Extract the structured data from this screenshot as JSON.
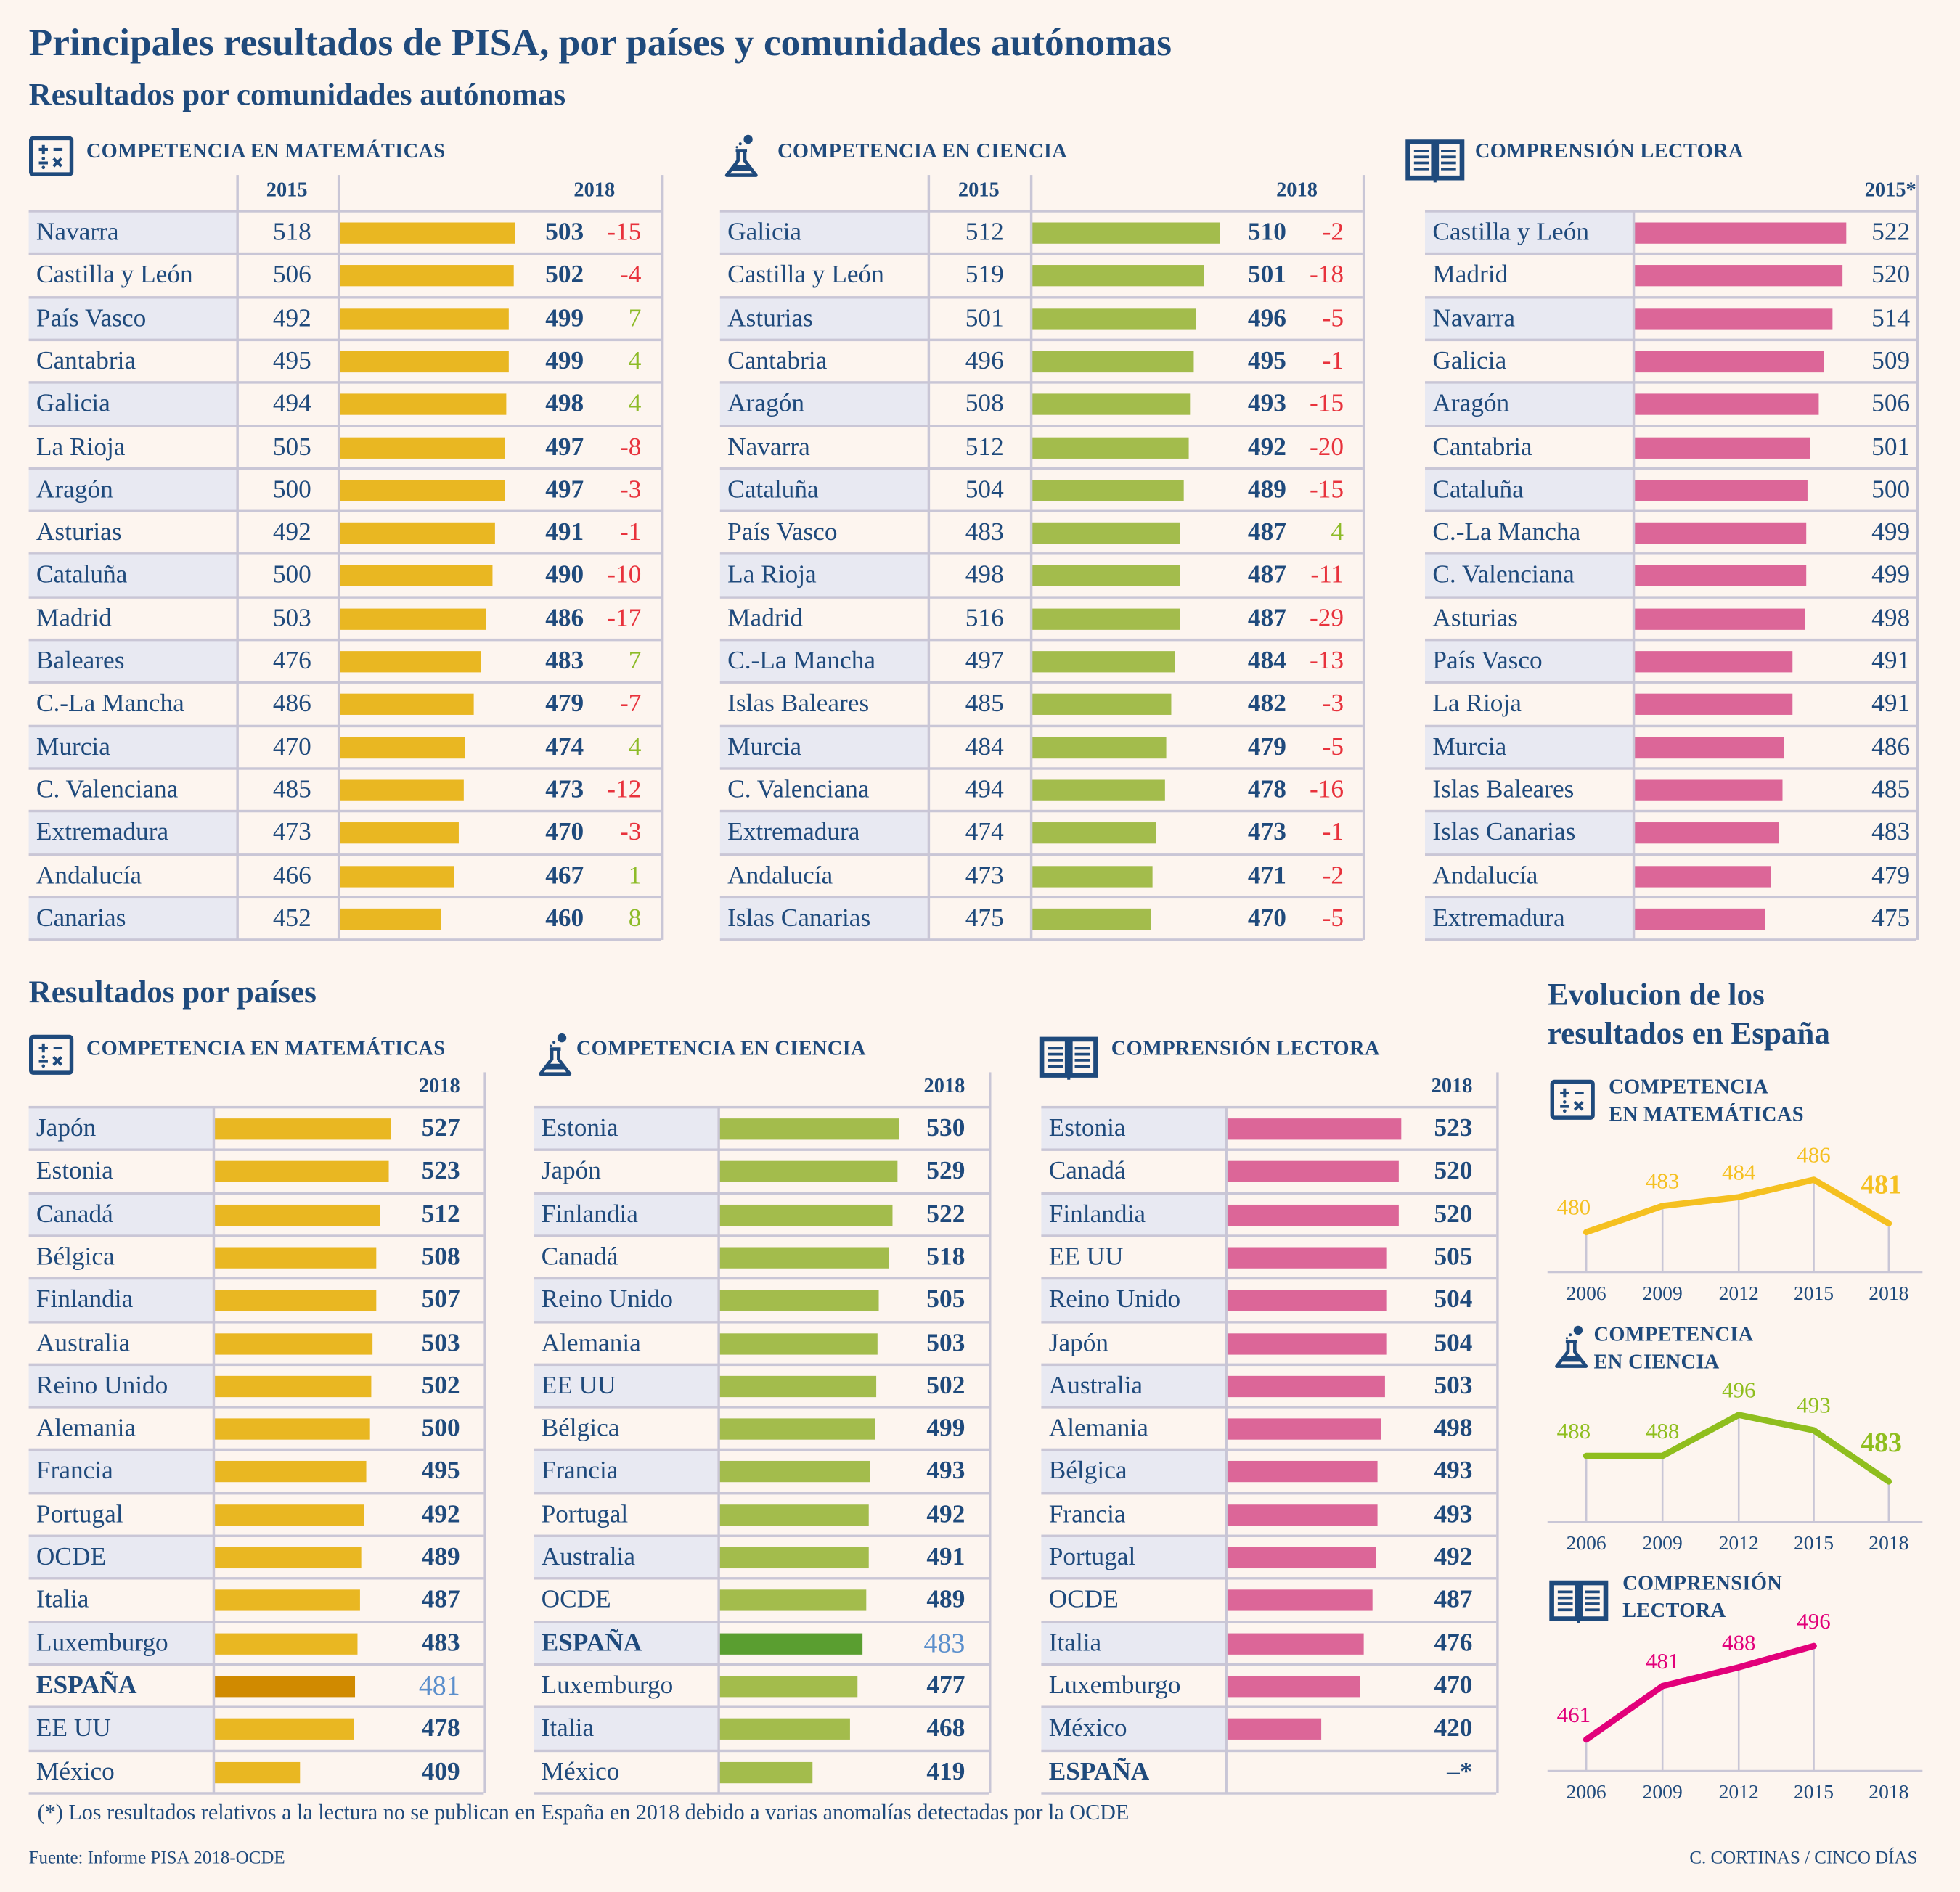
{
  "title": "Principales resultados de PISA, por países y comunidades autónomas",
  "regions_subtitle": "Resultados por comunidades autónomas",
  "countries_subtitle": "Resultados  por países",
  "colors": {
    "text": "#1f4a7c",
    "math": "#e9b722",
    "science": "#a3bc4c",
    "reading": "#dc6698",
    "math_spain": "#d08a00",
    "science_spain": "#5a9e30",
    "spain_value": "#5b8fcc",
    "negative": "#e8323c",
    "positive": "#8dbb28",
    "row_shade": "#e8e9f2",
    "background": "#fdf5ef"
  },
  "regions": {
    "math": {
      "label": "COMPETENCIA EN MATEMÁTICAS",
      "icon": "calculator-icon",
      "col_2015": "2015",
      "col_2018": "2018",
      "rows": [
        {
          "name": "Navarra",
          "v2015": 518,
          "v2018": 503,
          "delta": "-15"
        },
        {
          "name": "Castilla y León",
          "v2015": 506,
          "v2018": 502,
          "delta": "-4"
        },
        {
          "name": "País Vasco",
          "v2015": 492,
          "v2018": 499,
          "delta": "7"
        },
        {
          "name": "Cantabria",
          "v2015": 495,
          "v2018": 499,
          "delta": "4"
        },
        {
          "name": "Galicia",
          "v2015": 494,
          "v2018": 498,
          "delta": "4"
        },
        {
          "name": "La Rioja",
          "v2015": 505,
          "v2018": 497,
          "delta": "-8"
        },
        {
          "name": "Aragón",
          "v2015": 500,
          "v2018": 497,
          "delta": "-3"
        },
        {
          "name": "Asturias",
          "v2015": 492,
          "v2018": 491,
          "delta": "-1"
        },
        {
          "name": "Cataluña",
          "v2015": 500,
          "v2018": 490,
          "delta": "-10"
        },
        {
          "name": "Madrid",
          "v2015": 503,
          "v2018": 486,
          "delta": "-17"
        },
        {
          "name": "Baleares",
          "v2015": 476,
          "v2018": 483,
          "delta": "7"
        },
        {
          "name": "C.-La Mancha",
          "v2015": 486,
          "v2018": 479,
          "delta": "-7"
        },
        {
          "name": "Murcia",
          "v2015": 470,
          "v2018": 474,
          "delta": "4"
        },
        {
          "name": "C. Valenciana",
          "v2015": 485,
          "v2018": 473,
          "delta": "-12"
        },
        {
          "name": "Extremadura",
          "v2015": 473,
          "v2018": 470,
          "delta": "-3"
        },
        {
          "name": "Andalucía",
          "v2015": 466,
          "v2018": 467,
          "delta": "1"
        },
        {
          "name": "Canarias",
          "v2015": 452,
          "v2018": 460,
          "delta": "8"
        }
      ]
    },
    "science": {
      "label": "COMPETENCIA EN CIENCIA",
      "icon": "flask-icon",
      "col_2015": "2015",
      "col_2018": "2018",
      "rows": [
        {
          "name": "Galicia",
          "v2015": 512,
          "v2018": 510,
          "delta": "-2"
        },
        {
          "name": "Castilla y León",
          "v2015": 519,
          "v2018": 501,
          "delta": "-18"
        },
        {
          "name": "Asturias",
          "v2015": 501,
          "v2018": 496,
          "delta": "-5"
        },
        {
          "name": "Cantabria",
          "v2015": 496,
          "v2018": 495,
          "delta": "-1"
        },
        {
          "name": "Aragón",
          "v2015": 508,
          "v2018": 493,
          "delta": "-15"
        },
        {
          "name": "Navarra",
          "v2015": 512,
          "v2018": 492,
          "delta": "-20"
        },
        {
          "name": "Cataluña",
          "v2015": 504,
          "v2018": 489,
          "delta": "-15"
        },
        {
          "name": "País Vasco",
          "v2015": 483,
          "v2018": 487,
          "delta": "4"
        },
        {
          "name": "La Rioja",
          "v2015": 498,
          "v2018": 487,
          "delta": "-11"
        },
        {
          "name": "Madrid",
          "v2015": 516,
          "v2018": 487,
          "delta": "-29"
        },
        {
          "name": "C.-La Mancha",
          "v2015": 497,
          "v2018": 484,
          "delta": "-13"
        },
        {
          "name": "Islas Baleares",
          "v2015": 485,
          "v2018": 482,
          "delta": "-3"
        },
        {
          "name": "Murcia",
          "v2015": 484,
          "v2018": 479,
          "delta": "-5"
        },
        {
          "name": "C. Valenciana",
          "v2015": 494,
          "v2018": 478,
          "delta": "-16"
        },
        {
          "name": "Extremadura",
          "v2015": 474,
          "v2018": 473,
          "delta": "-1"
        },
        {
          "name": "Andalucía",
          "v2015": 473,
          "v2018": 471,
          "delta": "-2"
        },
        {
          "name": "Islas Canarias",
          "v2015": 475,
          "v2018": 470,
          "delta": "-5"
        }
      ]
    },
    "reading": {
      "label": "COMPRENSIÓN LECTORA",
      "icon": "book-icon",
      "col_2015": "2015*",
      "rows": [
        {
          "name": "Castilla y León",
          "v2015": 522
        },
        {
          "name": "Madrid",
          "v2015": 520
        },
        {
          "name": "Navarra",
          "v2015": 514
        },
        {
          "name": "Galicia",
          "v2015": 509
        },
        {
          "name": "Aragón",
          "v2015": 506
        },
        {
          "name": "Cantabria",
          "v2015": 501
        },
        {
          "name": "Cataluña",
          "v2015": 500
        },
        {
          "name": "C.-La Mancha",
          "v2015": 499
        },
        {
          "name": "C. Valenciana",
          "v2015": 499
        },
        {
          "name": "Asturias",
          "v2015": 498
        },
        {
          "name": "País Vasco",
          "v2015": 491
        },
        {
          "name": "La Rioja",
          "v2015": 491
        },
        {
          "name": "Murcia",
          "v2015": 486
        },
        {
          "name": "Islas Baleares",
          "v2015": 485
        },
        {
          "name": "Islas Canarias",
          "v2015": 483
        },
        {
          "name": "Andalucía",
          "v2015": 479
        },
        {
          "name": "Extremadura",
          "v2015": 475
        }
      ]
    }
  },
  "countries": {
    "math": {
      "label": "COMPETENCIA EN MATEMÁTICAS",
      "icon": "calculator-icon",
      "col_2018": "2018",
      "rows": [
        {
          "name": "Japón",
          "value": 527
        },
        {
          "name": "Estonia",
          "value": 523
        },
        {
          "name": "Canadá",
          "value": 512
        },
        {
          "name": "Bélgica",
          "value": 508
        },
        {
          "name": "Finlandia",
          "value": 507
        },
        {
          "name": "Australia",
          "value": 503
        },
        {
          "name": "Reino Unido",
          "value": 502
        },
        {
          "name": "Alemania",
          "value": 500
        },
        {
          "name": "Francia",
          "value": 495
        },
        {
          "name": "Portugal",
          "value": 492
        },
        {
          "name": "OCDE",
          "value": 489
        },
        {
          "name": "Italia",
          "value": 487
        },
        {
          "name": "Luxemburgo",
          "value": 483
        },
        {
          "name": "ESPAÑA",
          "value": 481,
          "highlight": true
        },
        {
          "name": "EE UU",
          "value": 478
        },
        {
          "name": "México",
          "value": 409
        }
      ]
    },
    "science": {
      "label": "COMPETENCIA EN CIENCIA",
      "icon": "flask-icon",
      "col_2018": "2018",
      "rows": [
        {
          "name": "Estonia",
          "value": 530
        },
        {
          "name": "Japón",
          "value": 529
        },
        {
          "name": "Finlandia",
          "value": 522
        },
        {
          "name": "Canadá",
          "value": 518
        },
        {
          "name": "Reino Unido",
          "value": 505
        },
        {
          "name": "Alemania",
          "value": 503
        },
        {
          "name": "EE UU",
          "value": 502
        },
        {
          "name": "Bélgica",
          "value": 499
        },
        {
          "name": "Francia",
          "value": 493
        },
        {
          "name": "Portugal",
          "value": 492
        },
        {
          "name": "Australia",
          "value": 491
        },
        {
          "name": "OCDE",
          "value": 489
        },
        {
          "name": "ESPAÑA",
          "value": 483,
          "highlight": true
        },
        {
          "name": "Luxemburgo",
          "value": 477
        },
        {
          "name": "Italia",
          "value": 468
        },
        {
          "name": "México",
          "value": 419
        }
      ]
    },
    "reading": {
      "label": "COMPRENSIÓN LECTORA",
      "icon": "book-icon",
      "col_2018": "2018",
      "rows": [
        {
          "name": "Estonia",
          "value": 523
        },
        {
          "name": "Canadá",
          "value": 520
        },
        {
          "name": "Finlandia",
          "value": 520
        },
        {
          "name": "EE UU",
          "value": 505
        },
        {
          "name": "Reino Unido",
          "value": 504
        },
        {
          "name": "Japón",
          "value": 504
        },
        {
          "name": "Australia",
          "value": 503
        },
        {
          "name": "Alemania",
          "value": 498
        },
        {
          "name": "Bélgica",
          "value": 493
        },
        {
          "name": "Francia",
          "value": 493
        },
        {
          "name": "Portugal",
          "value": 492
        },
        {
          "name": "OCDE",
          "value": 487
        },
        {
          "name": "Italia",
          "value": 476
        },
        {
          "name": "Luxemburgo",
          "value": 470
        },
        {
          "name": "México",
          "value": 420
        },
        {
          "name": "ESPAÑA",
          "value": null,
          "display": "–*",
          "highlight": true
        }
      ]
    }
  },
  "evolution": {
    "title_line1": "Evolucion de los",
    "title_line2": "resultados en España"
  },
  "chart_data": [
    {
      "type": "line",
      "title_line1": "COMPETENCIA",
      "title_line2": "EN MATEMÁTICAS",
      "icon": "calculator-icon",
      "color": "#f5c020",
      "x": [
        "2006",
        "2009",
        "2012",
        "2015",
        "2018"
      ],
      "values": [
        480,
        483,
        484,
        486,
        481
      ],
      "grid": "vertical drop lines"
    },
    {
      "type": "line",
      "title_line1": "COMPETENCIA",
      "title_line2": "EN CIENCIA",
      "icon": "flask-icon",
      "color": "#8fbe1e",
      "x": [
        "2006",
        "2009",
        "2012",
        "2015",
        "2018"
      ],
      "values": [
        488,
        488,
        496,
        493,
        483
      ],
      "grid": "vertical drop lines"
    },
    {
      "type": "line",
      "title_line1": "COMPRENSIÓN",
      "title_line2": "LECTORA",
      "icon": "book-icon",
      "color": "#e2007a",
      "x": [
        "2006",
        "2009",
        "2012",
        "2015",
        "2018"
      ],
      "values": [
        461,
        481,
        488,
        496,
        null
      ],
      "grid": "vertical drop lines"
    }
  ],
  "footnote": "(*) Los resultados relativos a la lectura no se publican en España en 2018 debido a varias anomalías detectadas por la OCDE",
  "source": "Fuente: Informe PISA 2018-OCDE",
  "credit": "C. CORTINAS / CINCO DÍAS"
}
